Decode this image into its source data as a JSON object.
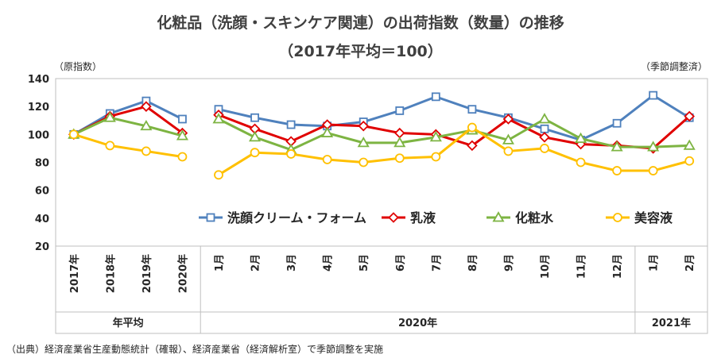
{
  "title_line1": "化粧品（洗顔・スキンケア関連）の出荷指数（数量）の推移",
  "title_line2": "（2017年平均＝100）",
  "unit_left": "（原指数）",
  "unit_right": "（季節調整済）",
  "source": "（出典）経済産業省生産動態統計（確報）、経済産業省（経済解析室）で季節調整を実施",
  "colors": {
    "wash": "#4F81BD",
    "milk": "#E00000",
    "lotion": "#7DB442",
    "essence": "#FFC000"
  },
  "chart_data": {
    "type": "line",
    "ylim": [
      20,
      140
    ],
    "yticks": [
      20,
      40,
      60,
      80,
      100,
      120,
      140
    ],
    "categories": [
      "2017年",
      "2018年",
      "2019年",
      "2020年",
      "1月",
      "2月",
      "3月",
      "4月",
      "5月",
      "6月",
      "7月",
      "8月",
      "9月",
      "10月",
      "11月",
      "12月",
      "1月",
      "2月"
    ],
    "groups": [
      {
        "label": "年平均",
        "start": 0,
        "end": 3
      },
      {
        "label": "2020年",
        "start": 4,
        "end": 15
      },
      {
        "label": "2021年",
        "start": 16,
        "end": 17
      }
    ],
    "segments": [
      [
        0,
        3
      ],
      [
        4,
        17
      ]
    ],
    "series": [
      {
        "name": "洗顔クリーム・フォーム",
        "key": "wash",
        "marker": "square",
        "values": [
          100,
          115,
          124,
          111,
          118,
          112,
          107,
          106,
          109,
          117,
          127,
          118,
          112,
          104,
          96,
          108,
          128,
          112
        ]
      },
      {
        "name": "乳液",
        "key": "milk",
        "marker": "diamond",
        "values": [
          100,
          113,
          120,
          101,
          114,
          104,
          95,
          107,
          106,
          101,
          100,
          92,
          111,
          98,
          93,
          92,
          90,
          113
        ]
      },
      {
        "name": "化粧水",
        "key": "lotion",
        "marker": "triangle",
        "values": [
          100,
          112,
          106,
          99,
          111,
          98,
          89,
          101,
          94,
          94,
          98,
          103,
          96,
          111,
          97,
          91,
          91,
          92
        ]
      },
      {
        "name": "美容液",
        "key": "essence",
        "marker": "circle",
        "values": [
          100,
          92,
          88,
          84,
          71,
          87,
          86,
          82,
          80,
          83,
          84,
          105,
          88,
          90,
          80,
          74,
          74,
          81
        ]
      }
    ],
    "legend_position": "inside-lower-center"
  }
}
